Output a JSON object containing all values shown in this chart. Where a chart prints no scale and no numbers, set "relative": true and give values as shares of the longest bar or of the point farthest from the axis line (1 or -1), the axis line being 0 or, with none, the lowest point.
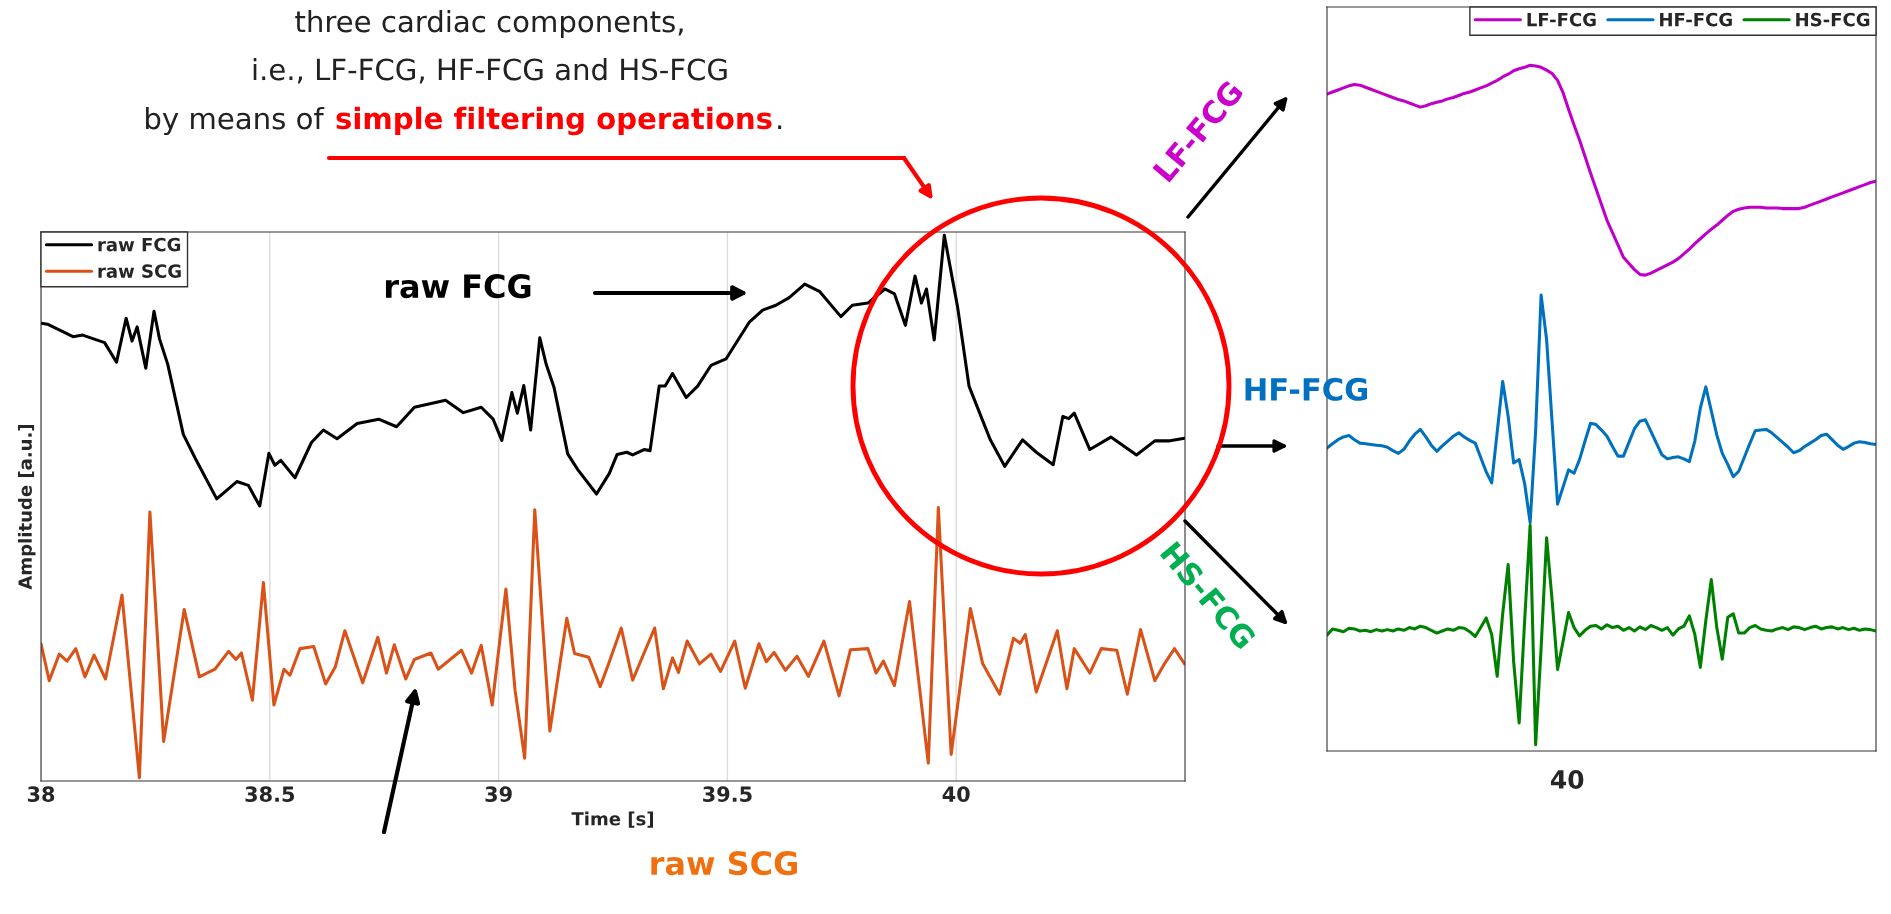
{
  "chart_data": [
    {
      "type": "line",
      "xlabel": "Time [s]",
      "ylabel": "Amplitude [a.u.]",
      "xlim": [
        38,
        40.5
      ],
      "xticks": [
        38,
        38.5,
        39,
        39.5,
        40
      ],
      "relative": true,
      "grid": "x",
      "legend": "top left",
      "annotations": [
        "three cardiac components,",
        "i.e., LF-FCG, HF-FCG and HS-FCG",
        "by means of",
        "simple filtering operations",
        ".",
        "raw FCG",
        "raw SCG"
      ],
      "series": [
        {
          "name": "raw FCG",
          "color": "#000000",
          "x": [
            38.0,
            38.014,
            38.07,
            38.091,
            38.139,
            38.165,
            38.186,
            38.199,
            38.21,
            38.229,
            38.247,
            38.259,
            38.277,
            38.311,
            38.337,
            38.384,
            38.428,
            38.453,
            38.478,
            38.498,
            38.511,
            38.524,
            38.555,
            38.591,
            38.617,
            38.647,
            38.691,
            38.738,
            38.777,
            38.816,
            38.884,
            38.923,
            38.962,
            38.988,
            39.007,
            39.029,
            39.041,
            39.055,
            39.07,
            39.09,
            39.104,
            39.121,
            39.151,
            39.173,
            39.214,
            39.242,
            39.259,
            39.28,
            39.293,
            39.318,
            39.331,
            39.351,
            39.364,
            39.38,
            39.41,
            39.435,
            39.464,
            39.497,
            39.548,
            39.577,
            39.606,
            39.635,
            39.669,
            39.702,
            39.748,
            39.773,
            39.807,
            39.844,
            39.865,
            39.889,
            39.91,
            39.924,
            39.935,
            39.952,
            39.974,
            40.003,
            40.028,
            40.074,
            40.106,
            40.145,
            40.175,
            40.212,
            40.233,
            40.246,
            40.258,
            40.292,
            40.338,
            40.394,
            40.434,
            40.467,
            40.499
          ],
          "values": [
            0.838,
            0.836,
            0.813,
            0.816,
            0.802,
            0.766,
            0.847,
            0.805,
            0.831,
            0.755,
            0.86,
            0.809,
            0.762,
            0.633,
            0.589,
            0.514,
            0.546,
            0.539,
            0.501,
            0.598,
            0.576,
            0.585,
            0.553,
            0.618,
            0.641,
            0.625,
            0.653,
            0.661,
            0.647,
            0.683,
            0.696,
            0.673,
            0.683,
            0.661,
            0.622,
            0.71,
            0.672,
            0.723,
            0.641,
            0.811,
            0.762,
            0.72,
            0.597,
            0.568,
            0.523,
            0.561,
            0.596,
            0.6,
            0.595,
            0.605,
            0.603,
            0.722,
            0.722,
            0.745,
            0.701,
            0.722,
            0.76,
            0.772,
            0.84,
            0.862,
            0.871,
            0.885,
            0.91,
            0.896,
            0.85,
            0.871,
            0.875,
            0.901,
            0.892,
            0.834,
            0.925,
            0.875,
            0.901,
            0.807,
            1.0,
            0.868,
            0.722,
            0.624,
            0.574,
            0.623,
            0.6,
            0.577,
            0.666,
            0.662,
            0.672,
            0.605,
            0.628,
            0.595,
            0.621,
            0.621,
            0.626
          ]
        },
        {
          "name": "raw SCG",
          "color": "#d95319",
          "x": [
            38.0,
            38.018,
            38.04,
            38.057,
            38.076,
            38.096,
            38.116,
            38.141,
            38.177,
            38.215,
            38.238,
            38.268,
            38.313,
            38.346,
            38.38,
            38.41,
            38.426,
            38.438,
            38.462,
            38.486,
            38.509,
            38.531,
            38.544,
            38.566,
            38.596,
            38.622,
            38.643,
            38.664,
            38.703,
            38.736,
            38.755,
            38.772,
            38.797,
            38.816,
            38.852,
            38.868,
            38.919,
            38.941,
            38.962,
            38.986,
            39.016,
            39.036,
            39.057,
            39.079,
            39.112,
            39.149,
            39.166,
            39.197,
            39.222,
            39.242,
            39.268,
            39.293,
            39.341,
            39.36,
            39.38,
            39.393,
            39.412,
            39.439,
            39.464,
            39.485,
            39.516,
            39.539,
            39.569,
            39.585,
            39.602,
            39.627,
            39.652,
            39.677,
            39.711,
            39.744,
            39.769,
            39.807,
            39.825,
            39.841,
            39.865,
            39.898,
            39.919,
            39.939,
            39.961,
            39.989,
            40.031,
            40.058,
            40.095,
            40.125,
            40.14,
            40.151,
            40.175,
            40.221,
            40.242,
            40.258,
            40.292,
            40.317,
            40.351,
            40.374,
            40.403,
            40.434,
            40.455,
            40.477,
            40.499
          ],
          "values": [
            0.247,
            0.179,
            0.228,
            0.215,
            0.238,
            0.186,
            0.226,
            0.182,
            0.337,
            0.0,
            0.49,
            0.067,
            0.31,
            0.186,
            0.2,
            0.233,
            0.218,
            0.23,
            0.143,
            0.36,
            0.134,
            0.2,
            0.189,
            0.238,
            0.242,
            0.173,
            0.204,
            0.271,
            0.175,
            0.259,
            0.193,
            0.245,
            0.182,
            0.218,
            0.23,
            0.2,
            0.235,
            0.193,
            0.244,
            0.134,
            0.348,
            0.161,
            0.036,
            0.494,
            0.086,
            0.294,
            0.229,
            0.222,
            0.168,
            0.214,
            0.276,
            0.18,
            0.276,
            0.164,
            0.221,
            0.194,
            0.252,
            0.21,
            0.228,
            0.196,
            0.252,
            0.165,
            0.247,
            0.214,
            0.231,
            0.198,
            0.224,
            0.187,
            0.252,
            0.151,
            0.236,
            0.238,
            0.193,
            0.215,
            0.17,
            0.325,
            0.172,
            0.027,
            0.498,
            0.043,
            0.312,
            0.21,
            0.154,
            0.257,
            0.248,
            0.264,
            0.158,
            0.271,
            0.164,
            0.238,
            0.193,
            0.238,
            0.235,
            0.154,
            0.273,
            0.179,
            0.21,
            0.238,
            0.21
          ]
        }
      ]
    },
    {
      "type": "line",
      "relative": true,
      "legend": "top right",
      "categories": [
        null,
        null,
        null,
        null,
        null,
        null,
        null,
        null,
        null,
        null,
        null,
        null,
        null,
        null,
        null,
        null,
        null,
        null,
        null,
        null,
        null,
        null,
        null,
        null,
        null,
        null,
        null,
        null,
        null,
        null,
        null,
        null,
        null,
        null,
        null,
        null,
        null,
        null,
        null,
        null,
        null,
        null,
        null,
        null,
        null,
        null,
        null,
        null,
        null,
        null,
        null,
        null,
        null,
        null,
        null,
        null,
        null,
        null,
        null,
        null,
        null,
        null,
        null,
        null,
        null,
        null,
        null,
        null,
        null,
        null,
        null,
        null,
        null,
        null,
        null,
        null,
        null,
        null,
        null,
        null,
        null,
        null,
        null,
        null,
        null,
        null,
        null,
        null,
        null,
        null,
        null,
        null,
        null,
        null,
        null,
        null,
        null,
        null,
        null,
        null,
        null
      ],
      "annotations": [
        "LF-FCG",
        "HF-FCG",
        "HS-FCG",
        "40"
      ],
      "series": [
        {
          "name": "LF-FCG",
          "color": "#c000c8",
          "values": [
            0.958,
            0.961,
            0.964,
            0.967,
            0.97,
            0.972,
            0.971,
            0.968,
            0.965,
            0.962,
            0.959,
            0.956,
            0.953,
            0.95,
            0.948,
            0.945,
            0.942,
            0.939,
            0.941,
            0.944,
            0.946,
            0.948,
            0.951,
            0.953,
            0.956,
            0.959,
            0.961,
            0.964,
            0.967,
            0.97,
            0.974,
            0.978,
            0.983,
            0.987,
            0.992,
            0.995,
            0.997,
            1.0,
            0.999,
            0.997,
            0.993,
            0.988,
            0.978,
            0.96,
            0.936,
            0.913,
            0.891,
            0.867,
            0.843,
            0.82,
            0.797,
            0.774,
            0.756,
            0.738,
            0.72,
            0.711,
            0.702,
            0.695,
            0.694,
            0.697,
            0.701,
            0.705,
            0.709,
            0.713,
            0.718,
            0.725,
            0.732,
            0.74,
            0.747,
            0.754,
            0.761,
            0.767,
            0.774,
            0.781,
            0.787,
            0.79,
            0.792,
            0.793,
            0.793,
            0.793,
            0.792,
            0.792,
            0.792,
            0.791,
            0.791,
            0.791,
            0.791,
            0.793,
            0.796,
            0.799,
            0.802,
            0.805,
            0.808,
            0.811,
            0.814,
            0.817,
            0.82,
            0.823,
            0.826,
            0.829,
            0.831
          ]
        },
        {
          "name": "HF-FCG",
          "color": "#0072bd",
          "values": [
            0.442,
            0.448,
            0.454,
            0.458,
            0.46,
            0.454,
            0.449,
            0.448,
            0.447,
            0.446,
            0.445,
            0.443,
            0.438,
            0.434,
            0.44,
            0.452,
            0.462,
            0.469,
            0.458,
            0.446,
            0.437,
            0.445,
            0.452,
            0.459,
            0.464,
            0.458,
            0.453,
            0.449,
            0.428,
            0.407,
            0.391,
            0.465,
            0.539,
            0.488,
            0.42,
            0.425,
            0.39,
            0.333,
            0.466,
            0.665,
            0.6,
            0.48,
            0.36,
            0.385,
            0.41,
            0.405,
            0.425,
            0.452,
            0.478,
            0.476,
            0.468,
            0.459,
            0.444,
            0.43,
            0.43,
            0.45,
            0.47,
            0.481,
            0.483,
            0.466,
            0.449,
            0.432,
            0.426,
            0.428,
            0.429,
            0.426,
            0.422,
            0.452,
            0.5,
            0.531,
            0.496,
            0.461,
            0.434,
            0.418,
            0.4,
            0.408,
            0.428,
            0.448,
            0.467,
            0.468,
            0.469,
            0.464,
            0.457,
            0.45,
            0.443,
            0.435,
            0.438,
            0.444,
            0.449,
            0.454,
            0.46,
            0.462,
            0.454,
            0.446,
            0.44,
            0.444,
            0.449,
            0.451,
            0.45,
            0.448,
            0.447
          ]
        },
        {
          "name": "HS-FCG",
          "color": "#008000",
          "values": [
            0.169,
            0.178,
            0.176,
            0.174,
            0.179,
            0.178,
            0.175,
            0.176,
            0.174,
            0.177,
            0.175,
            0.177,
            0.175,
            0.178,
            0.176,
            0.18,
            0.178,
            0.182,
            0.18,
            0.176,
            0.172,
            0.175,
            0.178,
            0.176,
            0.18,
            0.179,
            0.174,
            0.167,
            0.18,
            0.194,
            0.17,
            0.109,
            0.2,
            0.272,
            0.13,
            0.041,
            0.19,
            0.329,
            0.009,
            0.15,
            0.311,
            0.22,
            0.119,
            0.16,
            0.202,
            0.18,
            0.168,
            0.176,
            0.182,
            0.183,
            0.178,
            0.184,
            0.18,
            0.182,
            0.176,
            0.18,
            0.175,
            0.181,
            0.177,
            0.183,
            0.18,
            0.176,
            0.18,
            0.169,
            0.178,
            0.182,
            0.197,
            0.17,
            0.122,
            0.19,
            0.25,
            0.18,
            0.134,
            0.195,
            0.2,
            0.172,
            0.172,
            0.18,
            0.183,
            0.178,
            0.176,
            0.175,
            0.178,
            0.18,
            0.177,
            0.181,
            0.18,
            0.177,
            0.18,
            0.182,
            0.178,
            0.18,
            0.181,
            0.178,
            0.18,
            0.177,
            0.179,
            0.176,
            0.178,
            0.177,
            0.175
          ]
        }
      ]
    }
  ]
}
